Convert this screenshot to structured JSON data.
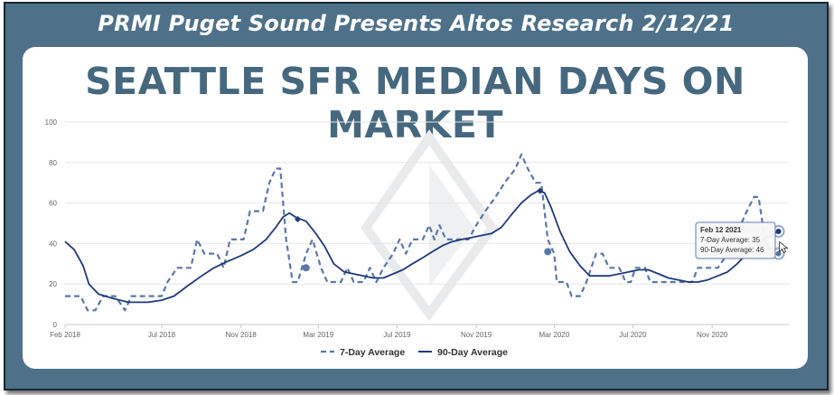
{
  "banner": {
    "text": "PRMI Puget Sound Presents Altos Research 2/12/21"
  },
  "chart_title": "SEATTLE SFR MEDIAN DAYS ON MARKET",
  "chart_data": {
    "type": "line",
    "title": "SEATTLE SFR MEDIAN DAYS ON MARKET",
    "xlabel": "",
    "ylabel": "",
    "ylim": [
      0,
      100
    ],
    "yticks": [
      0,
      20,
      40,
      60,
      80,
      100
    ],
    "xlim": [
      "2018-02-01",
      "2021-02-28"
    ],
    "xticks": [
      {
        "date": "2018-02-01",
        "label": "Feb 2018"
      },
      {
        "date": "2018-07-01",
        "label": "Jul 2018"
      },
      {
        "date": "2018-11-01",
        "label": "Nov 2018"
      },
      {
        "date": "2019-03-01",
        "label": "Mar 2019"
      },
      {
        "date": "2019-07-01",
        "label": "Jul 2019"
      },
      {
        "date": "2019-11-01",
        "label": "Nov 2019"
      },
      {
        "date": "2020-03-01",
        "label": "Mar 2020"
      },
      {
        "date": "2020-07-01",
        "label": "Jul 2020"
      },
      {
        "date": "2020-11-01",
        "label": "Nov 2020"
      }
    ],
    "grid": true,
    "legend": "bottom-center",
    "series": [
      {
        "name": "7-Day Average",
        "color": "#5b77a8",
        "style": "dashed",
        "points": [
          [
            "2018-02-01",
            14
          ],
          [
            "2018-02-25",
            14
          ],
          [
            "2018-03-08",
            7
          ],
          [
            "2018-03-20",
            7
          ],
          [
            "2018-04-01",
            14
          ],
          [
            "2018-04-20",
            14
          ],
          [
            "2018-05-05",
            7
          ],
          [
            "2018-05-15",
            14
          ],
          [
            "2018-06-15",
            14
          ],
          [
            "2018-07-01",
            14
          ],
          [
            "2018-07-10",
            21
          ],
          [
            "2018-07-25",
            28
          ],
          [
            "2018-08-15",
            28
          ],
          [
            "2018-08-25",
            42
          ],
          [
            "2018-09-05",
            35
          ],
          [
            "2018-09-25",
            35
          ],
          [
            "2018-10-05",
            28
          ],
          [
            "2018-10-15",
            42
          ],
          [
            "2018-11-05",
            42
          ],
          [
            "2018-11-15",
            56
          ],
          [
            "2018-12-05",
            56
          ],
          [
            "2018-12-15",
            70
          ],
          [
            "2018-12-25",
            77
          ],
          [
            "2019-01-01",
            77
          ],
          [
            "2019-01-10",
            42
          ],
          [
            "2019-01-20",
            21
          ],
          [
            "2019-01-28",
            21
          ],
          [
            "2019-02-10",
            35
          ],
          [
            "2019-02-20",
            42
          ],
          [
            "2019-03-05",
            28
          ],
          [
            "2019-03-15",
            21
          ],
          [
            "2019-04-05",
            21
          ],
          [
            "2019-04-15",
            28
          ],
          [
            "2019-04-25",
            21
          ],
          [
            "2019-05-10",
            21
          ],
          [
            "2019-05-20",
            28
          ],
          [
            "2019-05-30",
            21
          ],
          [
            "2019-06-10",
            28
          ],
          [
            "2019-06-25",
            35
          ],
          [
            "2019-07-05",
            42
          ],
          [
            "2019-07-15",
            35
          ],
          [
            "2019-07-25",
            42
          ],
          [
            "2019-08-10",
            42
          ],
          [
            "2019-08-20",
            49
          ],
          [
            "2019-08-28",
            42
          ],
          [
            "2019-09-05",
            49
          ],
          [
            "2019-09-15",
            42
          ],
          [
            "2019-10-01",
            42
          ],
          [
            "2019-10-20",
            42
          ],
          [
            "2019-11-01",
            49
          ],
          [
            "2019-11-15",
            56
          ],
          [
            "2019-12-01",
            63
          ],
          [
            "2019-12-15",
            70
          ],
          [
            "2020-01-01",
            77
          ],
          [
            "2020-01-10",
            84
          ],
          [
            "2020-01-20",
            77
          ],
          [
            "2020-02-01",
            70
          ],
          [
            "2020-02-10",
            70
          ],
          [
            "2020-02-20",
            42
          ],
          [
            "2020-03-01",
            35
          ],
          [
            "2020-03-05",
            21
          ],
          [
            "2020-03-20",
            21
          ],
          [
            "2020-03-28",
            14
          ],
          [
            "2020-04-10",
            14
          ],
          [
            "2020-04-20",
            21
          ],
          [
            "2020-05-05",
            35
          ],
          [
            "2020-05-15",
            35
          ],
          [
            "2020-05-25",
            28
          ],
          [
            "2020-06-10",
            28
          ],
          [
            "2020-06-20",
            21
          ],
          [
            "2020-06-28",
            21
          ],
          [
            "2020-07-05",
            28
          ],
          [
            "2020-07-20",
            28
          ],
          [
            "2020-07-28",
            21
          ],
          [
            "2020-08-15",
            21
          ],
          [
            "2020-09-01",
            21
          ],
          [
            "2020-09-20",
            21
          ],
          [
            "2020-10-01",
            21
          ],
          [
            "2020-10-10",
            28
          ],
          [
            "2020-10-25",
            28
          ],
          [
            "2020-11-10",
            28
          ],
          [
            "2020-11-25",
            35
          ],
          [
            "2020-12-05",
            42
          ],
          [
            "2020-12-15",
            49
          ],
          [
            "2020-12-25",
            56
          ],
          [
            "2021-01-05",
            63
          ],
          [
            "2021-01-12",
            63
          ],
          [
            "2021-01-22",
            42
          ],
          [
            "2021-02-01",
            35
          ],
          [
            "2021-02-12",
            35
          ]
        ]
      },
      {
        "name": "90-Day Average",
        "color": "#1f3a7a",
        "style": "solid",
        "points": [
          [
            "2018-02-01",
            41
          ],
          [
            "2018-02-15",
            37
          ],
          [
            "2018-03-01",
            29
          ],
          [
            "2018-03-10",
            20
          ],
          [
            "2018-03-25",
            15
          ],
          [
            "2018-04-15",
            13
          ],
          [
            "2018-05-10",
            11
          ],
          [
            "2018-06-10",
            11
          ],
          [
            "2018-07-01",
            12
          ],
          [
            "2018-07-20",
            14
          ],
          [
            "2018-08-10",
            19
          ],
          [
            "2018-09-01",
            24
          ],
          [
            "2018-09-20",
            28
          ],
          [
            "2018-10-10",
            31
          ],
          [
            "2018-11-01",
            34
          ],
          [
            "2018-11-20",
            37
          ],
          [
            "2018-12-10",
            42
          ],
          [
            "2018-12-25",
            48
          ],
          [
            "2019-01-05",
            53
          ],
          [
            "2019-01-15",
            55
          ],
          [
            "2019-01-25",
            53
          ],
          [
            "2019-02-10",
            51
          ],
          [
            "2019-02-25",
            45
          ],
          [
            "2019-03-10",
            39
          ],
          [
            "2019-03-25",
            30
          ],
          [
            "2019-04-10",
            26
          ],
          [
            "2019-04-25",
            25
          ],
          [
            "2019-05-10",
            24
          ],
          [
            "2019-05-25",
            23
          ],
          [
            "2019-06-10",
            23
          ],
          [
            "2019-06-25",
            25
          ],
          [
            "2019-07-10",
            27
          ],
          [
            "2019-07-25",
            30
          ],
          [
            "2019-08-10",
            33
          ],
          [
            "2019-08-25",
            36
          ],
          [
            "2019-09-10",
            39
          ],
          [
            "2019-09-25",
            41
          ],
          [
            "2019-10-10",
            42
          ],
          [
            "2019-10-25",
            43
          ],
          [
            "2019-11-10",
            44
          ],
          [
            "2019-11-25",
            45
          ],
          [
            "2019-12-10",
            48
          ],
          [
            "2019-12-25",
            54
          ],
          [
            "2020-01-10",
            60
          ],
          [
            "2020-01-25",
            64
          ],
          [
            "2020-02-05",
            66
          ],
          [
            "2020-02-15",
            65
          ],
          [
            "2020-02-25",
            58
          ],
          [
            "2020-03-10",
            46
          ],
          [
            "2020-03-25",
            36
          ],
          [
            "2020-04-10",
            29
          ],
          [
            "2020-04-25",
            24
          ],
          [
            "2020-05-10",
            24
          ],
          [
            "2020-05-25",
            24
          ],
          [
            "2020-06-10",
            25
          ],
          [
            "2020-06-25",
            26
          ],
          [
            "2020-07-10",
            27
          ],
          [
            "2020-07-25",
            27
          ],
          [
            "2020-08-10",
            25
          ],
          [
            "2020-08-25",
            23
          ],
          [
            "2020-09-10",
            22
          ],
          [
            "2020-09-25",
            21
          ],
          [
            "2020-10-10",
            21
          ],
          [
            "2020-10-25",
            22
          ],
          [
            "2020-11-10",
            24
          ],
          [
            "2020-11-25",
            26
          ],
          [
            "2020-12-10",
            30
          ],
          [
            "2020-12-25",
            35
          ],
          [
            "2021-01-10",
            40
          ],
          [
            "2021-01-25",
            43
          ],
          [
            "2021-02-12",
            46
          ]
        ]
      }
    ],
    "tooltip": {
      "date_label": "Feb 12 2021",
      "line1": "7-Day Average: 35",
      "line2": "90-Day Average: 46"
    }
  },
  "legend": {
    "series1": "7-Day Average",
    "series2": "90-Day Average"
  }
}
